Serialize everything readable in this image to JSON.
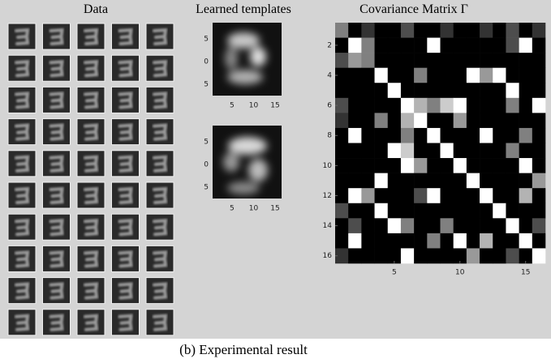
{
  "panels": {
    "data": {
      "title": "Data"
    },
    "templates": {
      "title": "Learned templates",
      "items": [
        {
          "yticks": [
            5,
            0,
            5
          ],
          "xticks": [
            5,
            10,
            15
          ]
        },
        {
          "yticks": [
            5,
            0,
            5
          ],
          "xticks": [
            5,
            10,
            15
          ]
        }
      ]
    },
    "covariance": {
      "title": "Covariance Matrix Γ",
      "yticks": [
        2,
        4,
        6,
        8,
        10,
        12,
        14,
        16
      ],
      "xticks": [
        5,
        10,
        15
      ],
      "values": [
        [
          0.5,
          0,
          0.2,
          0,
          0,
          0.3,
          0,
          0,
          0.2,
          0,
          0,
          0.2,
          0,
          0.3,
          0,
          0.2
        ],
        [
          0,
          1,
          0.5,
          0,
          0,
          0,
          0,
          1,
          0,
          0,
          0,
          0,
          0,
          0.3,
          1,
          0
        ],
        [
          0.3,
          0.6,
          0.5,
          0,
          0,
          0,
          0,
          0,
          0,
          0,
          0,
          0,
          0,
          0,
          0,
          0
        ],
        [
          0,
          0,
          0,
          1,
          0,
          0,
          0.5,
          0,
          0,
          0,
          1,
          0.6,
          1,
          0,
          0,
          0
        ],
        [
          0,
          0,
          0,
          0,
          1,
          0,
          0,
          0,
          0,
          0,
          0,
          0,
          0,
          1,
          0,
          0
        ],
        [
          0.3,
          0,
          0,
          0,
          0,
          1,
          0.7,
          0.5,
          0.8,
          1,
          0,
          0,
          0,
          0.5,
          0,
          1
        ],
        [
          0.2,
          0,
          0,
          0.5,
          0,
          0.7,
          1,
          0,
          0,
          0.6,
          0,
          0,
          0,
          0,
          0,
          0
        ],
        [
          0,
          1,
          0,
          0,
          0,
          0.5,
          0,
          1,
          0,
          0,
          0,
          1,
          0,
          0,
          0.5,
          0
        ],
        [
          0,
          0,
          0,
          0,
          1,
          0.8,
          0,
          0,
          1,
          0,
          0,
          0,
          0,
          0.5,
          0,
          0
        ],
        [
          0,
          0,
          0,
          0,
          0,
          1,
          0.6,
          0,
          0,
          1,
          0,
          0,
          0,
          0,
          1,
          0
        ],
        [
          0,
          0,
          0,
          1,
          0,
          0,
          0,
          0,
          0,
          0,
          1,
          0,
          0,
          0,
          0,
          0.6
        ],
        [
          0,
          1,
          0.6,
          0,
          0,
          0,
          0.3,
          1,
          0,
          0,
          0,
          1,
          0,
          0,
          0.7,
          0
        ],
        [
          0.3,
          0,
          0,
          1,
          0,
          0,
          0,
          0,
          0,
          0,
          0,
          0,
          1,
          0,
          0,
          0
        ],
        [
          0,
          0.3,
          0,
          0,
          1,
          0.5,
          0,
          0,
          0.5,
          0,
          0,
          0,
          0,
          1,
          0,
          0.3
        ],
        [
          0,
          1,
          0,
          0,
          0,
          0,
          0,
          0.5,
          0,
          1,
          0,
          0.7,
          0,
          0,
          1,
          0
        ],
        [
          0.2,
          0,
          0,
          0,
          0,
          1,
          0,
          0,
          0,
          0,
          0.6,
          0,
          0,
          0.3,
          0,
          1
        ]
      ]
    }
  },
  "caption": "(b) Experimental result"
}
